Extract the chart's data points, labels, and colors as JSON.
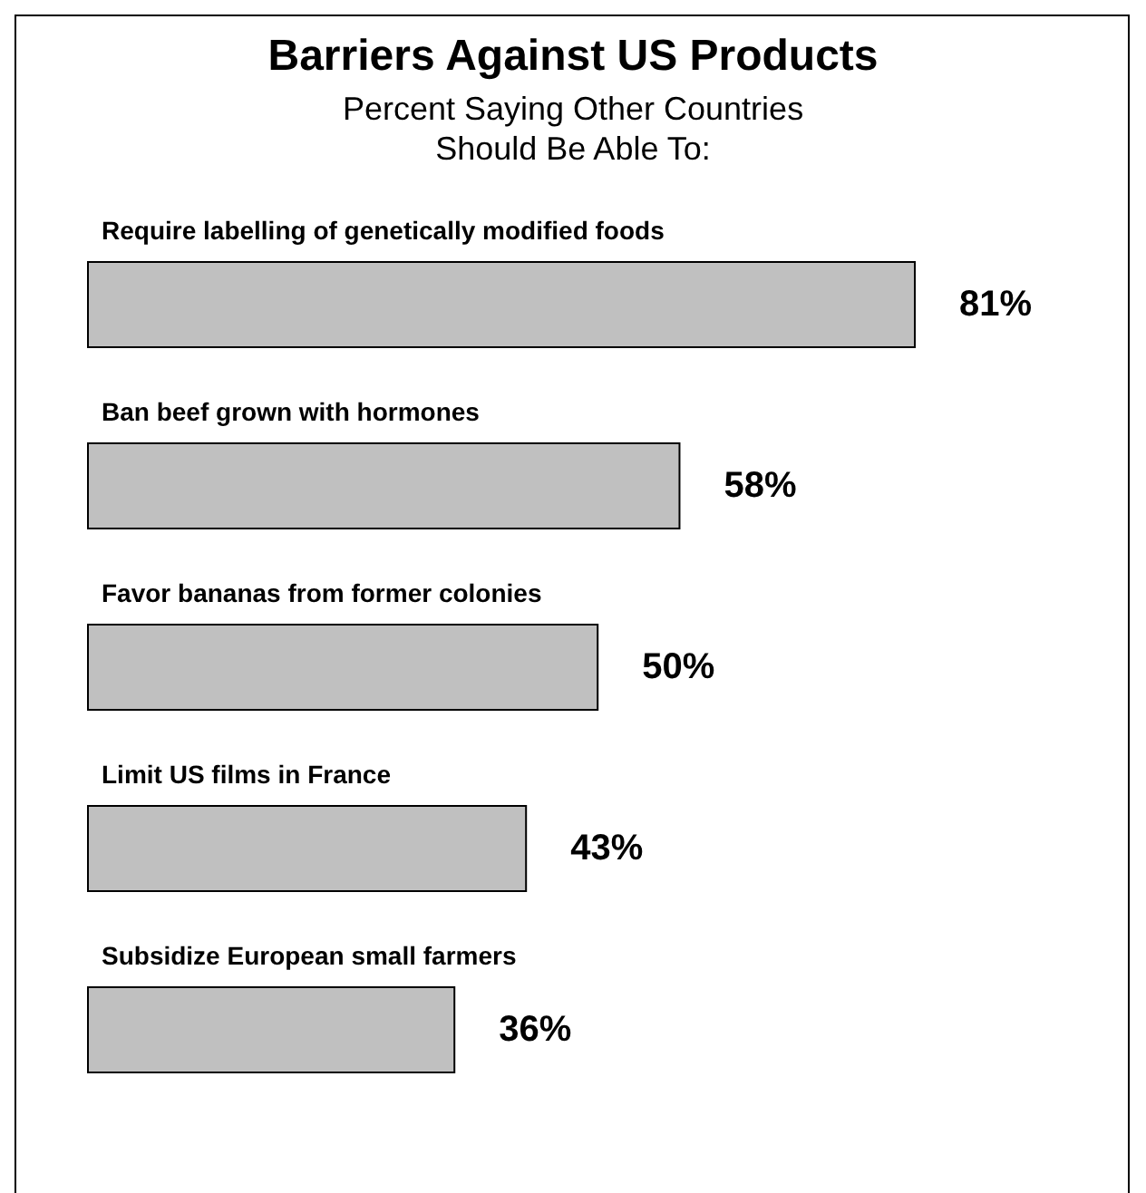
{
  "chart_data": {
    "type": "bar",
    "orientation": "horizontal",
    "title": "Barriers Against US Products",
    "subtitle": "Percent Saying Other Countries\nShould Be Able To:",
    "categories": [
      "Require labelling of genetically modified foods",
      "Ban beef grown with hormones",
      "Favor bananas from former colonies",
      "Limit US films in France",
      "Subsidize European small farmers"
    ],
    "values": [
      81,
      58,
      50,
      43,
      36
    ],
    "value_labels": [
      "81%",
      "58%",
      "50%",
      "43%",
      "36%"
    ],
    "color": "#c0c0c0",
    "tick_labels": "y"
  }
}
